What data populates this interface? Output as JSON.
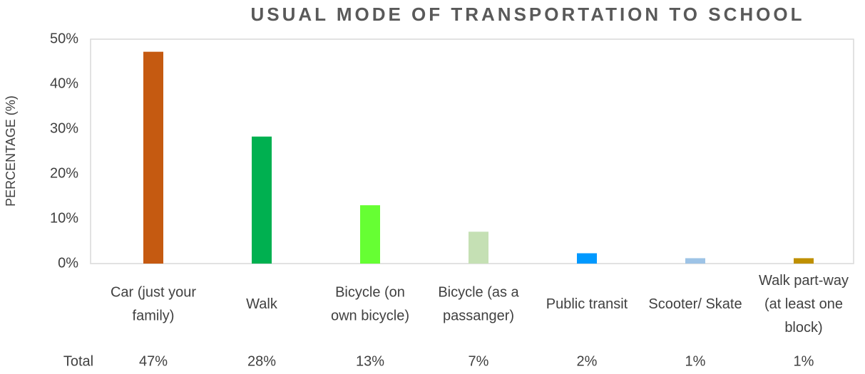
{
  "chart_data": {
    "type": "bar",
    "title": "USUAL MODE OF TRANSPORTATION TO SCHOOL",
    "y_label": "PERCENTAGE (%)",
    "categories": [
      "Car (just your family)",
      "Walk",
      "Bicycle (on own bicycle)",
      "Bicycle (as a passanger)",
      "Public transit",
      "Scooter/ Skate",
      "Walk part-way (at least one block)"
    ],
    "values": [
      47.2,
      28.3,
      13,
      7.1,
      2.3,
      1.2,
      1.2
    ],
    "colors": [
      "#C55A11",
      "#00B050",
      "#66FF33",
      "#C5E0B4",
      "#0099FF",
      "#9DC3E6",
      "#BF9000"
    ],
    "table_label": "Total",
    "value_labels": [
      "47%",
      "28%",
      "13%",
      "7%",
      "2%",
      "1%",
      "1%"
    ],
    "ylim": [
      0,
      50
    ],
    "yticks": [
      {
        "value": 0,
        "label": "0%"
      },
      {
        "value": 10,
        "label": "10%"
      },
      {
        "value": 20,
        "label": "20%"
      },
      {
        "value": 30,
        "label": "30%"
      },
      {
        "value": 40,
        "label": "40%"
      },
      {
        "value": 50,
        "label": "50%"
      }
    ]
  }
}
